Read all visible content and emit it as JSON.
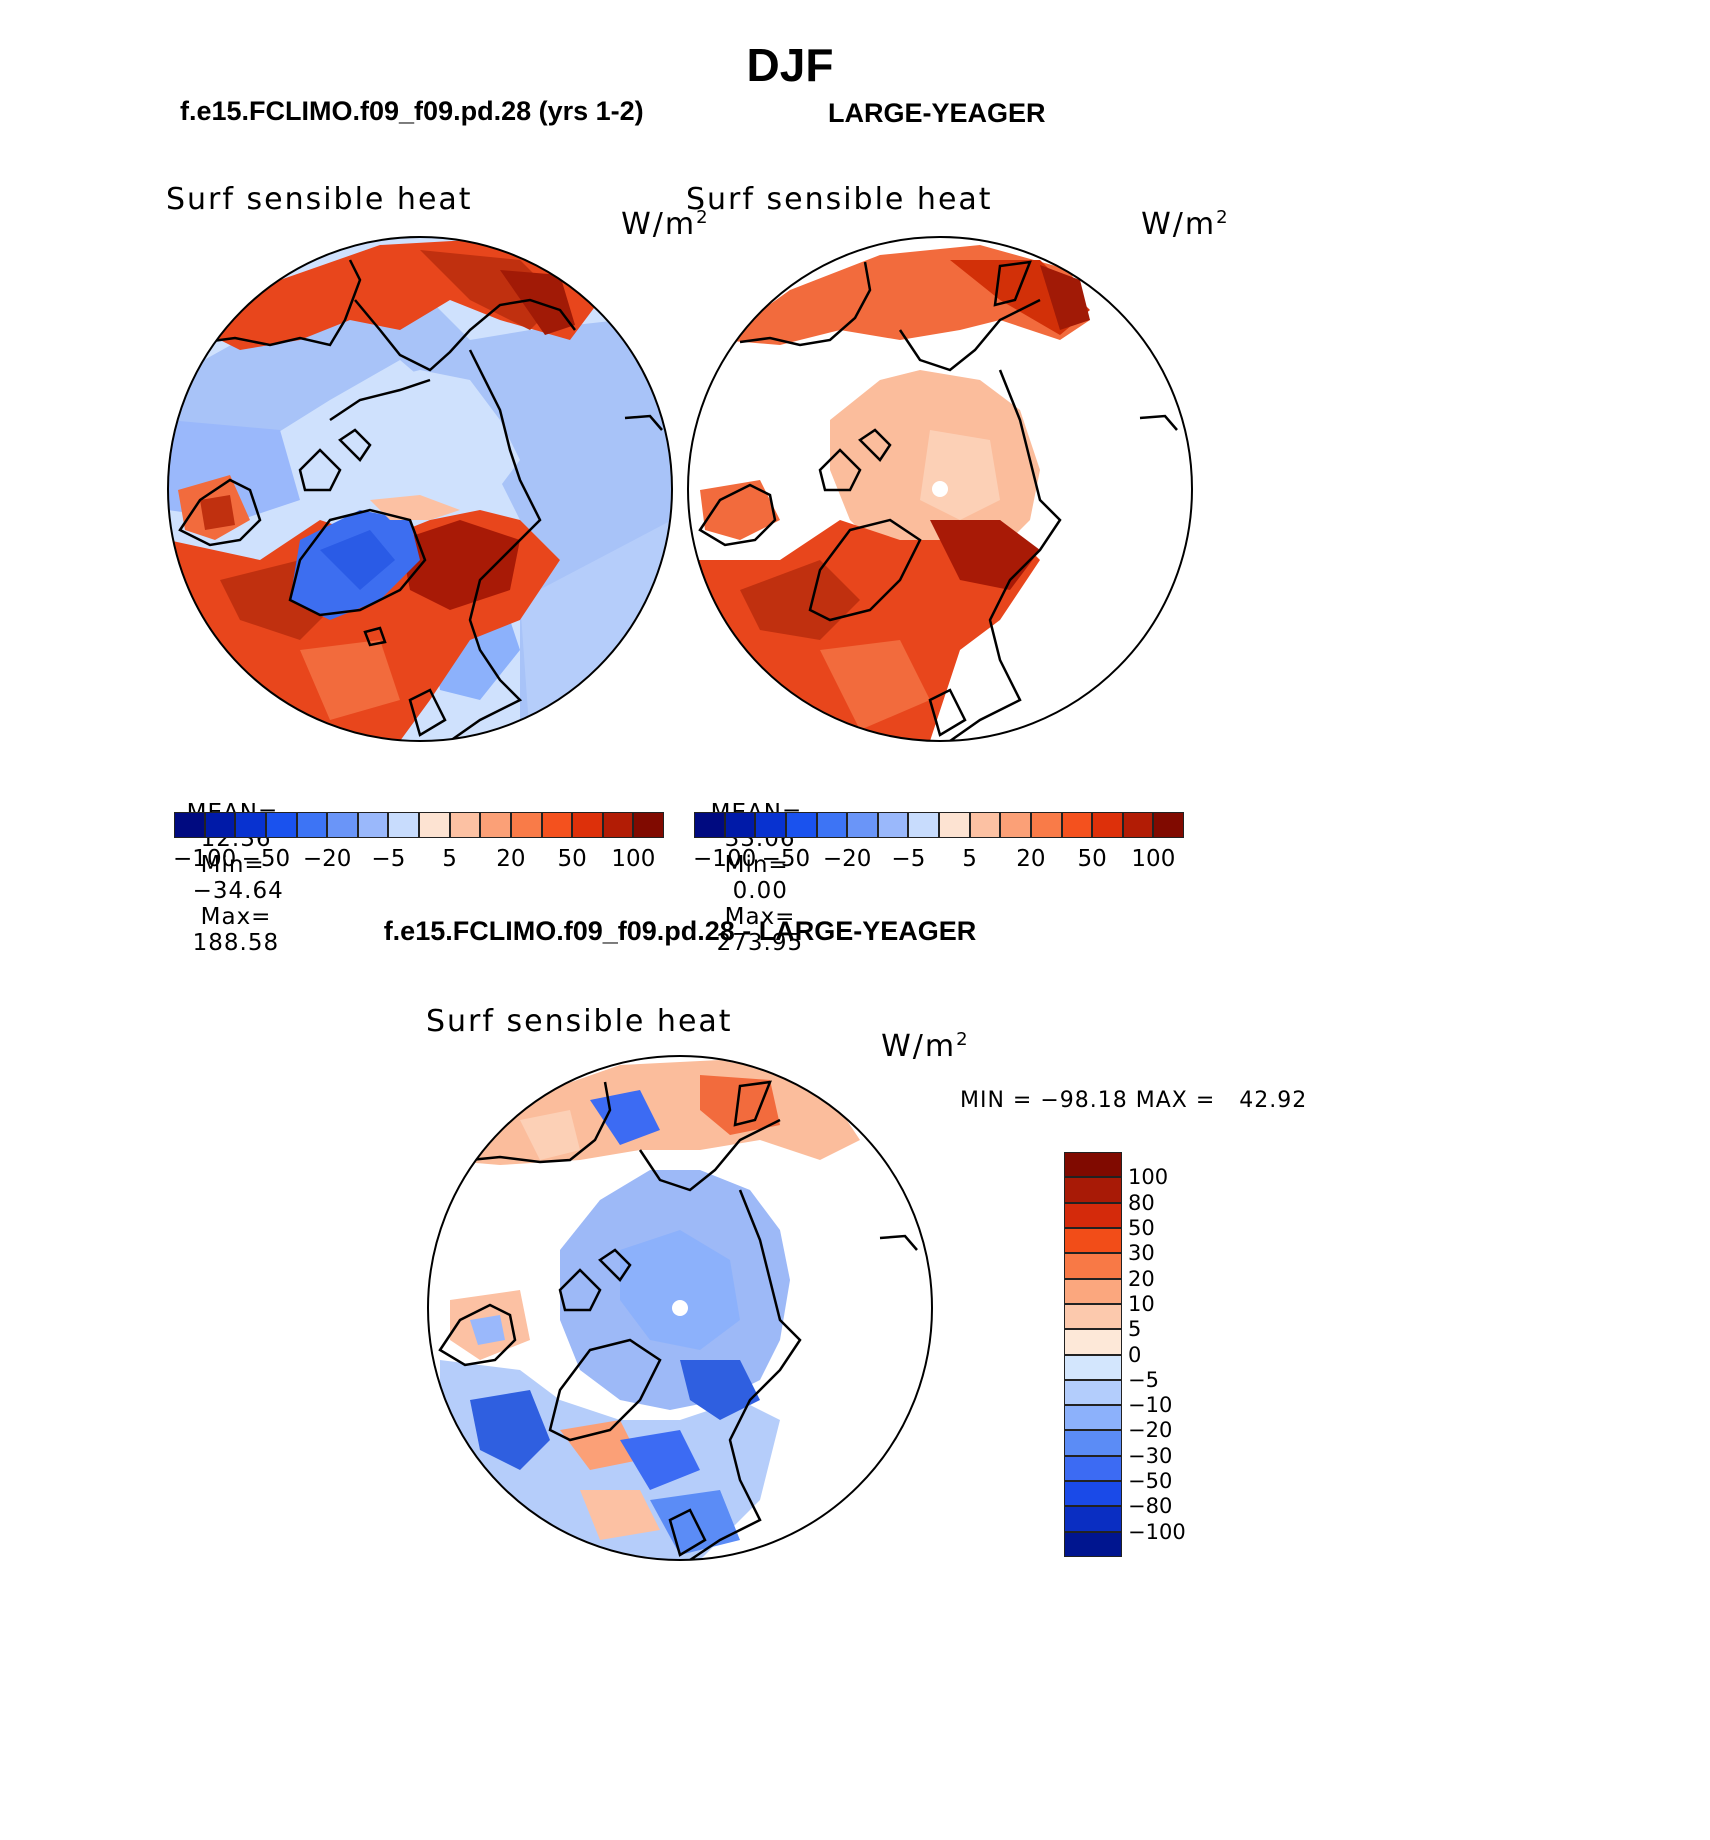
{
  "main_title": "DJF",
  "panels": {
    "left": {
      "case_title": "f.e15.FCLIMO.f09_f09.pd.28 (yrs 1-2)",
      "variable": "Surf sensible heat",
      "units_base": "W/m",
      "units_exp": "2",
      "stats": {
        "mean_label": "MEAN=",
        "mean": "12.36",
        "min_label": "Min=",
        "min": "−34.64",
        "max_label": "Max=",
        "max": "188.58"
      }
    },
    "right": {
      "case_title": "LARGE-YEAGER",
      "variable": "Surf sensible heat",
      "units_base": "W/m",
      "units_exp": "2",
      "stats": {
        "mean_label": "MEAN=",
        "mean": "33.06",
        "min_label": "Min=",
        "min": "0.00",
        "max_label": "Max=",
        "max": "273.95"
      }
    },
    "diff": {
      "case_title": "f.e15.FCLIMO.f09_f09.pd.28 - LARGE-YEAGER",
      "variable": "Surf sensible heat",
      "units_base": "W/m",
      "units_exp": "2",
      "minmax": "MIN = −98.18 MAX =   42.92"
    }
  },
  "horizontal_colorbar": {
    "colors": [
      "#000a80",
      "#001aa8",
      "#0832d0",
      "#1a52ee",
      "#3d74f5",
      "#6a95f8",
      "#9ab8fb",
      "#c8dcfd",
      "#fde3d2",
      "#fcc1a3",
      "#fba077",
      "#f97b48",
      "#f4511e",
      "#dd300a",
      "#b21c05",
      "#800a00"
    ],
    "labels": [
      "−100",
      "−50",
      "−20",
      "−5",
      "5",
      "20",
      "50",
      "100"
    ]
  },
  "vertical_colorbar": {
    "colors": [
      "#800a00",
      "#a81a06",
      "#d42a0b",
      "#f24d18",
      "#f87946",
      "#fba77e",
      "#fcc9ad",
      "#fde8d8",
      "#d3e6fd",
      "#b3cdfc",
      "#8cb1fb",
      "#5b8cf6",
      "#3c6bf3",
      "#1a4ae8",
      "#0a2ec2",
      "#00158f"
    ],
    "labels": [
      "100",
      "80",
      "50",
      "30",
      "20",
      "10",
      "5",
      "0",
      "−5",
      "−10",
      "−20",
      "−30",
      "−50",
      "−80",
      "−100"
    ]
  },
  "colors": {
    "ocean_warm": "#e8461c",
    "ocean_deep": "#c0300f",
    "ice_light": "#cfe1fd",
    "ice_mid": "#9db9f7",
    "land_blue": "#a8c3f8",
    "diff_blue": "#9db9f7",
    "diff_dark_blue": "#2f5fe0",
    "salmon": "#f9a27f"
  }
}
